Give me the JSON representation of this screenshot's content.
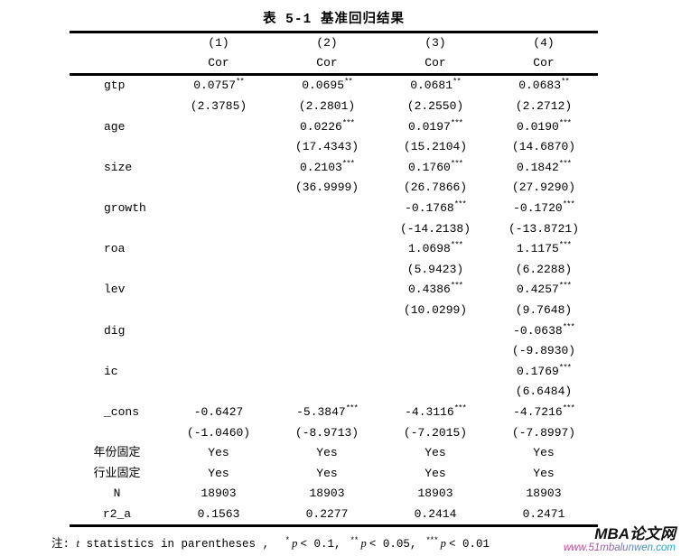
{
  "table": {
    "title": "表 5-1 基准回归结果",
    "columns": [
      {
        "number": "(1)",
        "model": "Cor"
      },
      {
        "number": "(2)",
        "model": "Cor"
      },
      {
        "number": "(3)",
        "model": "Cor"
      },
      {
        "number": "(4)",
        "model": "Cor"
      }
    ],
    "variables": [
      {
        "name": "gtp",
        "coefs": [
          "0.0757",
          "0.0695",
          "0.0681",
          "0.0683"
        ],
        "stars": [
          "**",
          "**",
          "**",
          "**"
        ],
        "tstats": [
          "(2.3785)",
          "(2.2801)",
          "(2.2550)",
          "(2.2712)"
        ]
      },
      {
        "name": "age",
        "coefs": [
          "",
          "0.0226",
          "0.0197",
          "0.0190"
        ],
        "stars": [
          "",
          "***",
          "***",
          "***"
        ],
        "tstats": [
          "",
          "(17.4343)",
          "(15.2104)",
          "(14.6870)"
        ]
      },
      {
        "name": "size",
        "coefs": [
          "",
          "0.2103",
          "0.1760",
          "0.1842"
        ],
        "stars": [
          "",
          "***",
          "***",
          "***"
        ],
        "tstats": [
          "",
          "(36.9999)",
          "(26.7866)",
          "(27.9290)"
        ]
      },
      {
        "name": "growth",
        "coefs": [
          "",
          "",
          "-0.1768",
          "-0.1720"
        ],
        "stars": [
          "",
          "",
          "***",
          "***"
        ],
        "tstats": [
          "",
          "",
          "(-14.2138)",
          "(-13.8721)"
        ]
      },
      {
        "name": "roa",
        "coefs": [
          "",
          "",
          "1.0698",
          "1.1175"
        ],
        "stars": [
          "",
          "",
          "***",
          "***"
        ],
        "tstats": [
          "",
          "",
          "(5.9423)",
          "(6.2288)"
        ]
      },
      {
        "name": "lev",
        "coefs": [
          "",
          "",
          "0.4386",
          "0.4257"
        ],
        "stars": [
          "",
          "",
          "***",
          "***"
        ],
        "tstats": [
          "",
          "",
          "(10.0299)",
          "(9.7648)"
        ]
      },
      {
        "name": "dig",
        "coefs": [
          "",
          "",
          "",
          "-0.0638"
        ],
        "stars": [
          "",
          "",
          "",
          "***"
        ],
        "tstats": [
          "",
          "",
          "",
          "(-9.8930)"
        ]
      },
      {
        "name": "ic",
        "coefs": [
          "",
          "",
          "",
          "0.1769"
        ],
        "stars": [
          "",
          "",
          "",
          "***"
        ],
        "tstats": [
          "",
          "",
          "",
          "(6.6484)"
        ]
      },
      {
        "name": "_cons",
        "coefs": [
          "-0.6427",
          "-5.3847",
          "-4.3116",
          "-4.7216"
        ],
        "stars": [
          "",
          "***",
          "***",
          "***"
        ],
        "tstats": [
          "(-1.0460)",
          "(-8.9713)",
          "(-7.2015)",
          "(-7.8997)"
        ]
      }
    ],
    "stats": [
      {
        "label": "年份固定",
        "values": [
          "Yes",
          "Yes",
          "Yes",
          "Yes"
        ]
      },
      {
        "label": "行业固定",
        "values": [
          "Yes",
          "Yes",
          "Yes",
          "Yes"
        ]
      },
      {
        "label": "N",
        "values": [
          "18903",
          "18903",
          "18903",
          "18903"
        ]
      },
      {
        "label": "r2_a",
        "values": [
          "0.1563",
          "0.2277",
          "0.2414",
          "0.2471"
        ]
      }
    ]
  },
  "note": {
    "prefix": "注:",
    "t_word": "t",
    "body": "statistics in parentheses ,",
    "sigs": [
      {
        "star": "*",
        "p": "p",
        "cond": "< 0.1,"
      },
      {
        "star": "**",
        "p": "p",
        "cond": "< 0.05,"
      },
      {
        "star": "***",
        "p": "p",
        "cond": "< 0.01"
      }
    ]
  },
  "watermark": {
    "site_name": "MBA论文网",
    "site_url": "www.51mbalunwen.com",
    "name_color": "#111111",
    "url_gradient_start": "#ee2a8b",
    "url_gradient_end": "#00b3dd"
  }
}
